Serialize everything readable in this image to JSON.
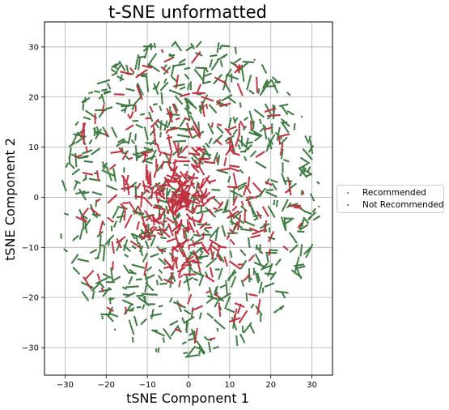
{
  "chart_data": {
    "type": "scatter",
    "title": "t-SNE unformatted",
    "xlabel": "tSNE Component 1",
    "ylabel": "tSNE Component 2",
    "xlim": [
      -35,
      35
    ],
    "ylim": [
      -35.5,
      35
    ],
    "xticks": [
      -30,
      -20,
      -10,
      0,
      10,
      20,
      30
    ],
    "yticks": [
      -30,
      -20,
      -10,
      0,
      10,
      20,
      30
    ],
    "grid": true,
    "legend_placement": "outside-right",
    "series": [
      {
        "name": "Recommended",
        "color": "#3d7a40",
        "distribution": {
          "shape": "ellipse",
          "center": [
            0,
            0
          ],
          "x_radius": 32,
          "y_radius": 32,
          "approx_points": 4000
        }
      },
      {
        "name": "Not Recommended",
        "color": "#c0313f",
        "distribution": {
          "shape": "ellipse",
          "center": [
            -1,
            0
          ],
          "x_radius": 29,
          "y_radius": 30,
          "approx_points": 2500,
          "denser_near_center": true
        }
      }
    ]
  }
}
